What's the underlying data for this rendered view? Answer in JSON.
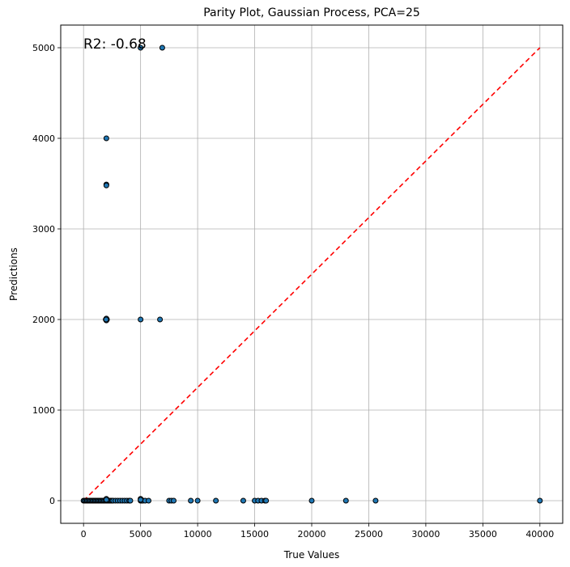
{
  "chart_data": {
    "type": "scatter",
    "title": "Parity Plot, Gaussian Process, PCA=25",
    "xlabel": "True Values",
    "ylabel": "Predictions",
    "annotation": "R2: -0.68",
    "xlim": [
      -2000,
      42000
    ],
    "ylim": [
      -250,
      5250
    ],
    "xticks": [
      0,
      5000,
      10000,
      15000,
      20000,
      25000,
      30000,
      35000,
      40000
    ],
    "yticks": [
      0,
      1000,
      2000,
      3000,
      4000,
      5000
    ],
    "grid": true,
    "marker_color": "#1f77b4",
    "marker_edge_color": "#000000",
    "reference_line": {
      "x": [
        0,
        40000
      ],
      "y": [
        0,
        5000
      ],
      "color": "#ff0000",
      "style": "dashed"
    },
    "series": [
      {
        "x": [
          0,
          100,
          200,
          300,
          400,
          500,
          600,
          700,
          800,
          900,
          1000,
          1100,
          1200,
          1300,
          1400,
          1500,
          1600,
          1700,
          1800,
          1900,
          2000,
          2100,
          2200,
          2300,
          2400,
          2500,
          2600,
          2800,
          3000,
          3200,
          3400,
          3600,
          3800,
          4000,
          4100,
          5000,
          5100,
          5200,
          5400,
          5700,
          7500,
          7700,
          7900,
          9400,
          10000,
          11600,
          14000,
          15000,
          15300,
          15600,
          15900,
          16000,
          20000,
          23000,
          25600,
          40000,
          2000,
          2000,
          2000,
          1950,
          2050,
          2000,
          2000,
          1980,
          2000,
          5000,
          6700,
          5000,
          6900,
          5000,
          5000,
          2000
        ],
        "y": [
          0,
          0,
          0,
          0,
          0,
          0,
          0,
          0,
          0,
          0,
          0,
          0,
          0,
          0,
          0,
          0,
          0,
          0,
          0,
          0,
          0,
          0,
          0,
          0,
          0,
          0,
          0,
          0,
          0,
          0,
          0,
          0,
          0,
          0,
          0,
          0,
          0,
          0,
          0,
          0,
          0,
          0,
          0,
          0,
          0,
          0,
          0,
          0,
          0,
          0,
          0,
          0,
          0,
          0,
          0,
          0,
          20,
          3490,
          3480,
          2000,
          2000,
          2010,
          1990,
          2000,
          4000,
          2000,
          2000,
          5000,
          5000,
          20,
          10,
          10
        ]
      }
    ]
  }
}
